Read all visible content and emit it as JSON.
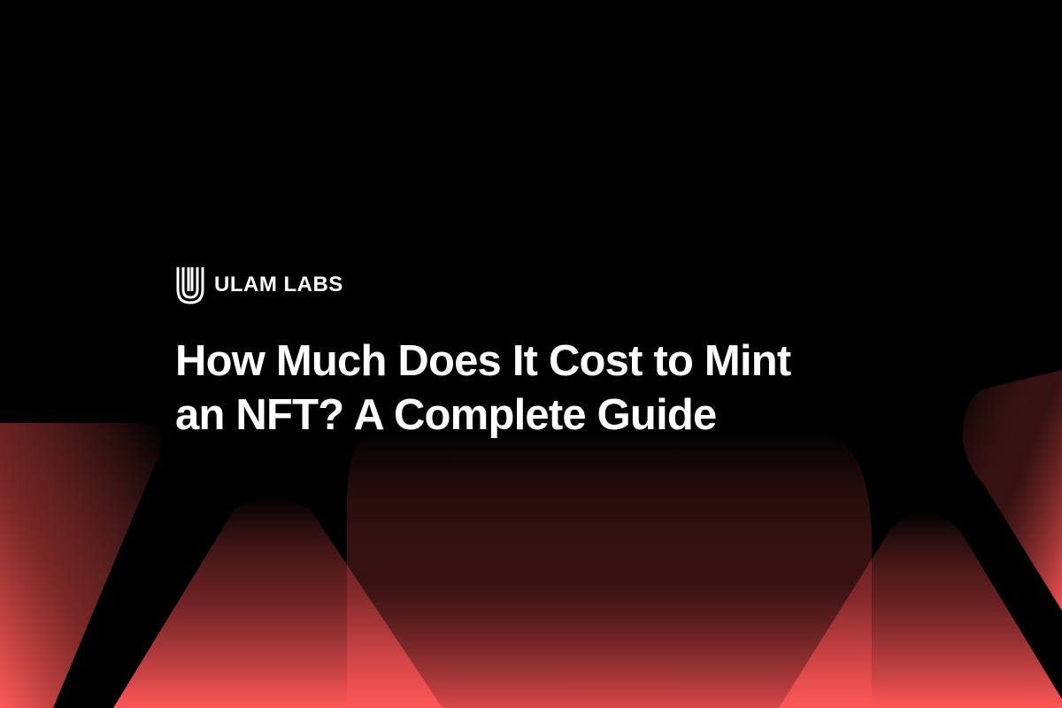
{
  "brand": {
    "name": "ULAM LABS",
    "logo_icon": "u-monogram-icon"
  },
  "headline": {
    "line1": "How Much Does It Cost to Mint",
    "line2": "an NFT? A Complete Guide"
  },
  "colors": {
    "background": "#000000",
    "accent": "#ff5757",
    "text": "#ffffff"
  }
}
